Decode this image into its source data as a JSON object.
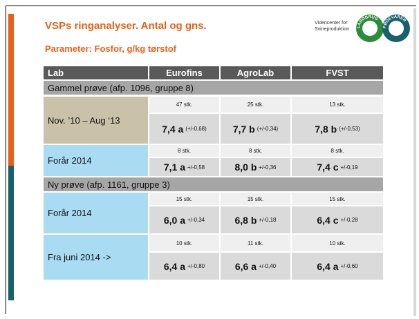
{
  "header": {
    "title": "VSPs ringanalyser. Antal og gns.",
    "subtitle": "Parameter: Fosfor, g/kg tørstof"
  },
  "logo": {
    "line1": "Videncenter for",
    "line2": "Svineproduktion",
    "ring_left": "LANDBRUG",
    "ring_right": "FØDEVARER"
  },
  "table": {
    "columns": [
      "Lab",
      "Eurofins",
      "AgroLab",
      "FVST"
    ],
    "sections": [
      {
        "label": "Gammel prøve (afp. 1096, gruppe 8)",
        "rows": [
          {
            "label": "Nov. ’10 – Aug ‘13",
            "cells": [
              {
                "count": "47 stk.",
                "value": "7,4 a",
                "error": "(+/-0,68)"
              },
              {
                "count": "25 stk.",
                "value": "7,7 b",
                "error": "(+/-0,34)"
              },
              {
                "count": "13 stk.",
                "value": "7,8 b",
                "error": "(+/-0,53)"
              }
            ]
          },
          {
            "label": "Forår 2014",
            "cells": [
              {
                "count": "8 stk.",
                "value": "7,1 a",
                "error": "+/-0,58"
              },
              {
                "count": "8 stk.",
                "value": "8,0 b",
                "error": "+/-0,36"
              },
              {
                "count": "8 stk.",
                "value": "7,4 c",
                "error": "+/-0,19"
              }
            ]
          }
        ]
      },
      {
        "label": "Ny prøve (afp. 1161, gruppe 3)",
        "rows": [
          {
            "label": "Forår 2014",
            "cells": [
              {
                "count": "15 stk.",
                "value": "6,0 a",
                "error": "+/-0,34"
              },
              {
                "count": "15 stk.",
                "value": "6,8 b",
                "error": "+/-0,18"
              },
              {
                "count": "15 stk.",
                "value": "6,4 c",
                "error": "+/-0,28"
              }
            ]
          },
          {
            "label": "Fra juni 2014 ->",
            "cells": [
              {
                "count": "10 stk.",
                "value": "6,4 a",
                "error": "+/-0,80"
              },
              {
                "count": "11 stk.",
                "value": "6,6 a",
                "error": "+/-0,40"
              },
              {
                "count": "10 stk.",
                "value": "6,4 a",
                "error": "+/-0,60"
              }
            ]
          }
        ]
      }
    ]
  }
}
